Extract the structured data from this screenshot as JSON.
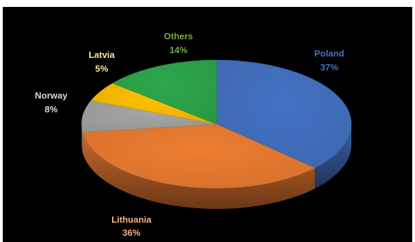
{
  "chart_data": {
    "type": "pie",
    "style": "3d",
    "title": "",
    "slices": [
      {
        "label": "Poland",
        "value": 37,
        "value_label": "37%",
        "color": "#4472C4"
      },
      {
        "label": "Lithuania",
        "value": 36,
        "value_label": "36%",
        "color": "#ED7D31"
      },
      {
        "label": "Norway",
        "value": 8,
        "value_label": "8%",
        "color": "#A5A5A5"
      },
      {
        "label": "Latvia",
        "value": 5,
        "value_label": "5%",
        "color": "#FFC000"
      },
      {
        "label": "Others",
        "value": 14,
        "value_label": "14%",
        "color": "#2EA84B"
      }
    ],
    "label_colors": {
      "Poland": "#4472C4",
      "Lithuania": "#F4B183",
      "Norway": "#D9D9D9",
      "Latvia": "#FFE699",
      "Others": "#70AD47"
    },
    "background": "#000000"
  }
}
